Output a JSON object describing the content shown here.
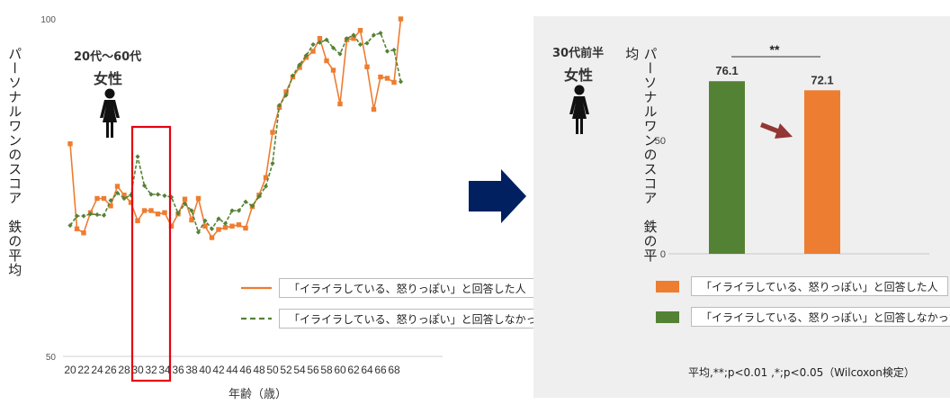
{
  "chart_data": [
    {
      "type": "line",
      "ylabel": "パーソナルワンのスコア　鉄の平均",
      "xlabel": "年齢（歳）",
      "ylim": [
        50,
        100
      ],
      "yticks": [
        "100",
        "50"
      ],
      "xtick_labels": [
        "20",
        "22",
        "24",
        "26",
        "28",
        "30",
        "32",
        "34",
        "36",
        "38",
        "40",
        "42",
        "44",
        "46",
        "48",
        "50",
        "52",
        "54",
        "56",
        "58",
        "60",
        "62",
        "64",
        "66",
        "68"
      ],
      "group_label_1": "20代～60代",
      "group_label_2": "女性",
      "x": [
        20,
        21,
        22,
        23,
        24,
        25,
        26,
        27,
        28,
        29,
        30,
        31,
        32,
        33,
        34,
        35,
        36,
        37,
        38,
        39,
        40,
        41,
        42,
        43,
        44,
        45,
        46,
        47,
        48,
        49,
        50,
        51,
        52,
        53,
        54,
        55,
        56,
        57,
        58,
        59,
        60,
        61,
        62,
        63,
        64,
        65,
        66,
        67,
        68,
        69
      ],
      "series": [
        {
          "name": "「イライラしている、怒りっぽい」と回答した人",
          "color": "#ed7d31",
          "style": "solid-square",
          "values": [
            81.5,
            68.9,
            68.3,
            71.3,
            73.4,
            73.4,
            72.3,
            75.2,
            73.9,
            72.8,
            70.1,
            71.6,
            71.6,
            71.1,
            71.3,
            69.3,
            71.1,
            73.3,
            70.2,
            73.4,
            69.3,
            67.6,
            68.8,
            69.1,
            69.3,
            69.5,
            69.0,
            72.2,
            73.9,
            76.5,
            83.2,
            86.9,
            89.2,
            91.4,
            92.8,
            94.3,
            95.2,
            97.1,
            93.8,
            92.4,
            87.4,
            96.9,
            97.1,
            98.3,
            92.9,
            86.6,
            91.4,
            91.2,
            90.6,
            100.0
          ]
        },
        {
          "name": "「イライラしている、怒りっぽい」と回答しなかった人",
          "color": "#548235",
          "style": "dashed-diamond",
          "values": [
            69.4,
            70.8,
            70.8,
            71.1,
            71.0,
            70.9,
            73.1,
            74.2,
            73.4,
            73.9,
            79.6,
            75.3,
            74.0,
            74.0,
            73.8,
            73.6,
            71.2,
            72.6,
            71.6,
            68.4,
            70.1,
            68.9,
            70.4,
            69.7,
            71.6,
            71.6,
            72.9,
            72.3,
            73.7,
            75.2,
            78.6,
            87.2,
            88.7,
            91.6,
            93.2,
            94.6,
            96.2,
            96.5,
            96.9,
            95.7,
            94.8,
            97.1,
            97.6,
            96.2,
            96.4,
            97.6,
            97.9,
            95.2,
            95.4,
            90.7
          ]
        }
      ]
    },
    {
      "type": "bar",
      "ylabel": "パーソナルワンのスコア　鉄の平均",
      "yticks": [
        "0",
        "50"
      ],
      "ylim": [
        0,
        100
      ],
      "group_label_1": "30代前半",
      "group_label_2": "女性",
      "categories": [
        "「イライラしている、怒りっぽい」と回答しなかった人",
        "「イライラしている、怒りっぽい」と回答した人"
      ],
      "values": [
        76.1,
        72.1
      ],
      "value_labels": [
        "76.1",
        "72.1"
      ],
      "colors": [
        "#548235",
        "#ed7d31"
      ],
      "significance": "**",
      "footnote": "平均,**;p<0.01 ,*;p<0.05（Wilcoxon検定）",
      "legend": [
        {
          "label": "「イライラしている、怒りっぽい」と回答した人",
          "color": "#ed7d31"
        },
        {
          "label": "「イライラしている、怒りっぽい」と回答しなかった人",
          "color": "#548235"
        }
      ]
    }
  ],
  "highlight_range": [
    "30",
    "34"
  ],
  "colors": {
    "arrow_big": "#002060",
    "arrow_small": "#943634",
    "highlight": "#e60012",
    "panel_bg": "#efefef"
  }
}
